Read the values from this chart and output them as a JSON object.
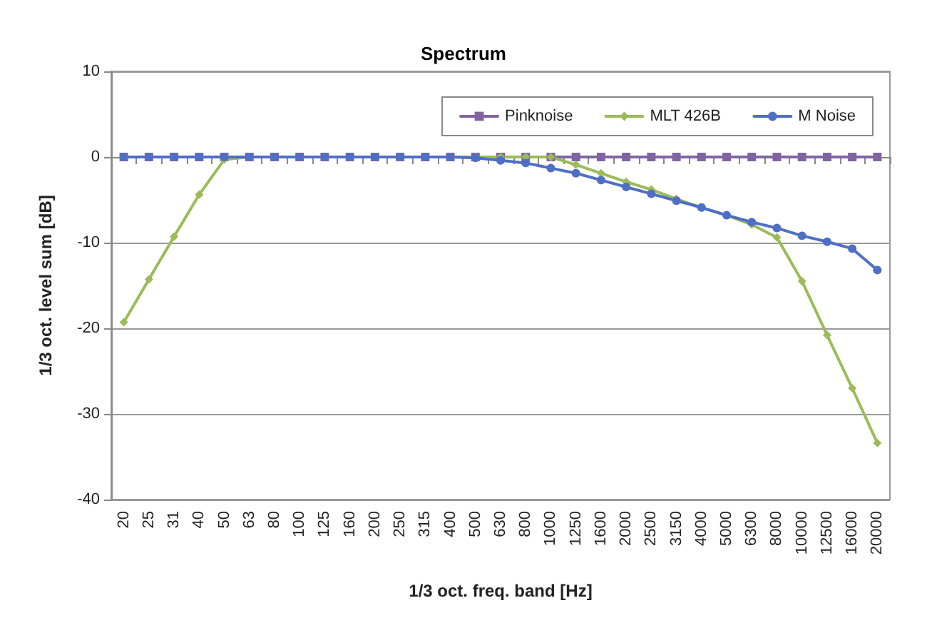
{
  "chart_data": {
    "type": "line",
    "title": "Spectrum",
    "xlabel": "1/3 oct. freq. band [Hz]",
    "ylabel": "1/3 oct. level sum [dB]",
    "categories": [
      "20",
      "25",
      "31",
      "40",
      "50",
      "63",
      "80",
      "100",
      "125",
      "160",
      "200",
      "250",
      "315",
      "400",
      "500",
      "630",
      "800",
      "1000",
      "1250",
      "1600",
      "2000",
      "2500",
      "3150",
      "4000",
      "5000",
      "6300",
      "8000",
      "10000",
      "12500",
      "16000",
      "20000"
    ],
    "series": [
      {
        "name": "Pinknoise",
        "color": "#8064a2",
        "marker": "square",
        "values": [
          0,
          0,
          0,
          0,
          0,
          0,
          0,
          0,
          0,
          0,
          0,
          0,
          0,
          0,
          0,
          0,
          0,
          0,
          0,
          0,
          0,
          0,
          0,
          0,
          0,
          0,
          0,
          0,
          0,
          0,
          0
        ]
      },
      {
        "name": "MLT 426B",
        "color": "#9bbb59",
        "marker": "diamond",
        "values": [
          -19.3,
          -14.3,
          -9.3,
          -4.4,
          -0.3,
          0,
          0,
          0,
          0,
          0,
          0,
          0,
          0,
          0,
          0,
          0,
          0,
          0,
          -0.9,
          -1.9,
          -2.9,
          -3.8,
          -4.9,
          -5.9,
          -6.8,
          -7.9,
          -9.4,
          -14.5,
          -20.8,
          -27,
          -33.4
        ]
      },
      {
        "name": "M Noise",
        "color": "#4f6fc4",
        "marker": "circle",
        "values": [
          0,
          0,
          0,
          0,
          0,
          0,
          0,
          0,
          0,
          0,
          0,
          0,
          0,
          0,
          -0.1,
          -0.4,
          -0.7,
          -1.3,
          -1.9,
          -2.7,
          -3.5,
          -4.3,
          -5.1,
          -5.9,
          -6.8,
          -7.6,
          -8.3,
          -9.2,
          -9.9,
          -10.7,
          -13.2
        ]
      }
    ],
    "ylim": [
      -40,
      10
    ],
    "yticks": [
      -40,
      -30,
      -20,
      -10,
      0,
      10
    ],
    "grid": "y",
    "legend": "top right",
    "line_style": "solid"
  }
}
